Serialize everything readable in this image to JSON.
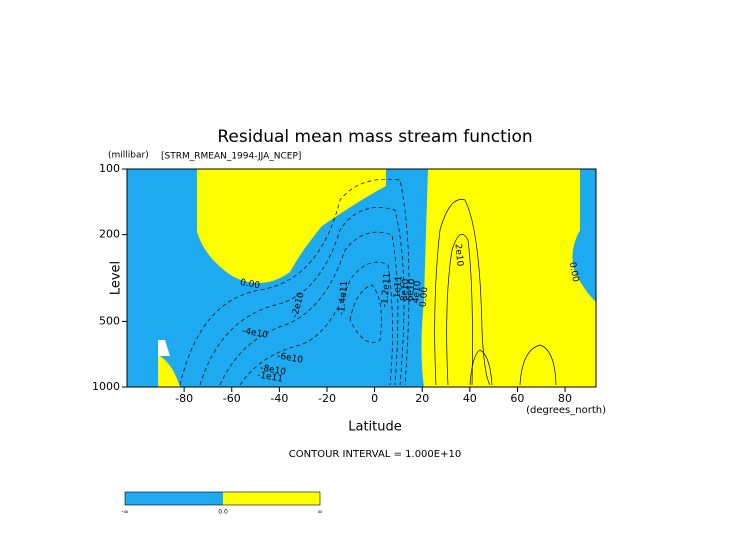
{
  "chart_data": {
    "type": "contour",
    "title": "Residual mean mass stream function",
    "subtitle": "[STRM_RMEAN_1994-JJA_NCEP]",
    "y_unit": "(millibar)",
    "y_label": "Level",
    "x_label": "Latitude",
    "x_unit": "(degrees_north)",
    "footnote": "CONTOUR INTERVAL = 1.000E+10",
    "xlim": [
      -104,
      93
    ],
    "xticks": [
      -80,
      -60,
      -40,
      -20,
      0,
      20,
      40,
      60,
      80
    ],
    "ylim": [
      1000,
      100
    ],
    "yticks": [
      100,
      200,
      500,
      1000
    ],
    "log_y": true,
    "negative_color": "#1eaaf0",
    "positive_color": "#ffff00",
    "colorbar_labels": [
      "-∞",
      "0.0",
      "∞"
    ],
    "contour_labels": [
      "0.00",
      "-2e10",
      "-4e10",
      "-6e10",
      "-8e10",
      "-1e11",
      "-1.4e11",
      "-1.2e11",
      "1e11",
      "8e10",
      "6e10",
      "4e10",
      "0.00",
      "2e10",
      "0.00"
    ]
  }
}
